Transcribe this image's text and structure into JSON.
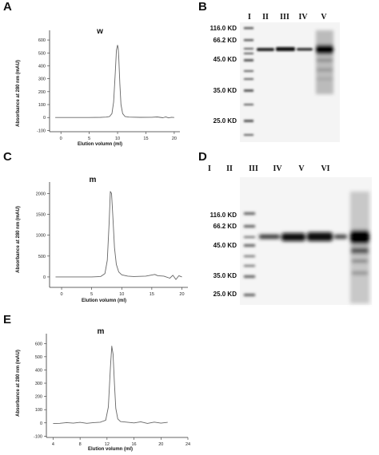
{
  "panels": {
    "A": "A",
    "B": "B",
    "C": "C",
    "D": "D",
    "E": "E"
  },
  "chart_data": [
    {
      "id": "A",
      "type": "line",
      "ylabel": "Absorbance at 280 nm (mAU)",
      "xlabel": "Elution volumn (ml)",
      "peak_label": "w",
      "xlim": [
        -2,
        21
      ],
      "ylim": [
        -110,
        650
      ],
      "xticks": [
        0,
        5,
        10,
        15,
        20
      ],
      "yticks": [
        -100,
        0,
        100,
        200,
        300,
        400,
        500,
        600
      ],
      "x": [
        -1,
        1,
        3,
        5,
        7,
        8,
        8.6,
        9.0,
        9.3,
        9.6,
        9.8,
        10.0,
        10.1,
        10.2,
        10.4,
        10.6,
        10.9,
        11.3,
        12,
        14,
        16,
        17,
        18,
        18.5,
        19,
        19.5,
        20
      ],
      "y": [
        0,
        0,
        0,
        0,
        1,
        3,
        8,
        30,
        120,
        350,
        520,
        560,
        540,
        470,
        260,
        100,
        30,
        8,
        3,
        1,
        2,
        4,
        -2,
        5,
        -3,
        2,
        0
      ]
    },
    {
      "id": "C",
      "type": "line",
      "ylabel": "Absorbance at 280 nm (mAU)",
      "xlabel": "Elution volumn (ml)",
      "peak_label": "m",
      "xlim": [
        -2,
        21
      ],
      "ylim": [
        -250,
        2200
      ],
      "xticks": [
        0,
        5,
        10,
        15,
        20
      ],
      "yticks": [
        0,
        500,
        1000,
        1500,
        2000
      ],
      "x": [
        -1,
        1,
        3,
        5,
        6.5,
        7.2,
        7.6,
        7.9,
        8.1,
        8.3,
        8.5,
        8.8,
        9.1,
        9.5,
        10,
        11,
        12,
        14,
        15.5,
        16,
        17,
        18,
        18.5,
        19,
        19.5,
        20
      ],
      "y": [
        0,
        0,
        0,
        0,
        10,
        80,
        400,
        1300,
        2050,
        2000,
        1500,
        700,
        300,
        120,
        50,
        20,
        10,
        20,
        60,
        30,
        20,
        -30,
        40,
        -60,
        30,
        0
      ]
    },
    {
      "id": "E",
      "type": "line",
      "ylabel": "Absorbance at 280 nm (mAU)",
      "xlabel": "Elution volumn (ml)",
      "peak_label": "m",
      "xlim": [
        3,
        24
      ],
      "ylim": [
        -110,
        650
      ],
      "xticks": [
        4,
        8,
        12,
        16,
        20,
        24
      ],
      "yticks": [
        -100,
        0,
        100,
        200,
        300,
        400,
        500,
        600
      ],
      "x": [
        4,
        5,
        6,
        7,
        8,
        9,
        10,
        11,
        11.8,
        12.2,
        12.5,
        12.7,
        12.9,
        13.1,
        13.3,
        13.6,
        14,
        15,
        16,
        17,
        18,
        19,
        20,
        21
      ],
      "y": [
        -5,
        -3,
        2,
        -2,
        4,
        -3,
        2,
        5,
        20,
        120,
        420,
        580,
        520,
        300,
        110,
        30,
        10,
        5,
        0,
        8,
        -4,
        6,
        -2,
        4
      ]
    }
  ],
  "gels": {
    "B": {
      "lanes": [
        "I",
        "II",
        "III",
        "IV",
        "V"
      ],
      "markers": [
        "116.0 KD",
        "66.2 KD",
        "45.0 KD",
        "35.0 KD",
        "25.0 KD"
      ]
    },
    "D": {
      "lanes": [
        "I",
        "II",
        "III",
        "IV",
        "V",
        "VI"
      ],
      "markers": [
        "116.0 KD",
        "66.2 KD",
        "45.0 KD",
        "35.0 KD",
        "25.0 KD"
      ]
    }
  }
}
